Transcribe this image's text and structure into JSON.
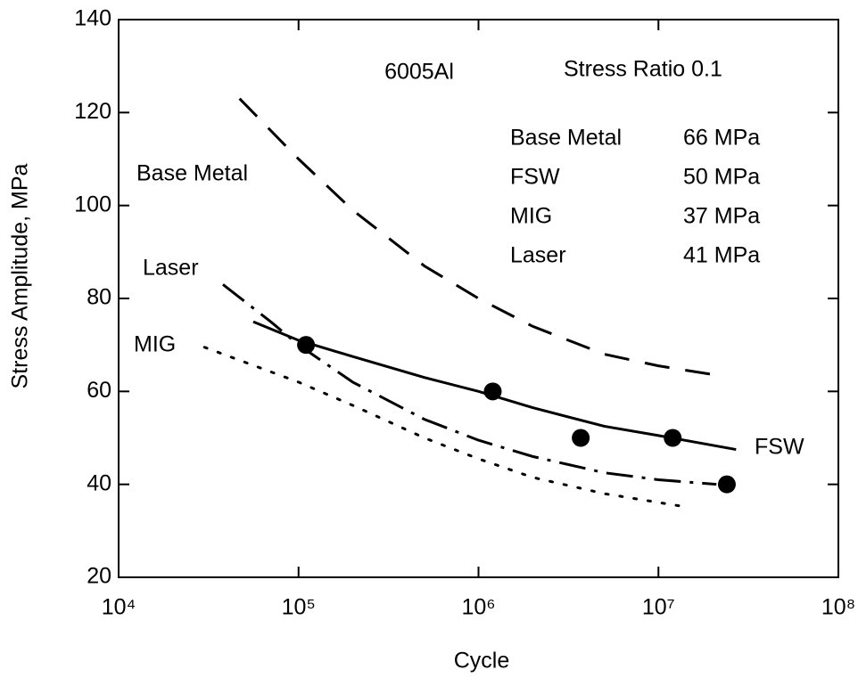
{
  "chart_data": {
    "type": "line",
    "x_axis_label": "Cycle",
    "y_axis_label": "Stress Amplitude, MPa",
    "xscale": "log",
    "xlim": [
      10000,
      100000000
    ],
    "ylim": [
      20,
      140
    ],
    "xticks": [
      {
        "value": 10000,
        "label": "10⁴"
      },
      {
        "value": 100000,
        "label": "10⁵"
      },
      {
        "value": 1000000,
        "label": "10⁶"
      },
      {
        "value": 10000000,
        "label": "10⁷"
      },
      {
        "value": 100000000,
        "label": "10⁸"
      }
    ],
    "yticks": [
      20,
      40,
      60,
      80,
      100,
      120,
      140
    ],
    "annotations": [
      "6005Al",
      "Stress Ratio 0.1"
    ],
    "fatigue_limits": [
      {
        "name": "Base Metal",
        "value": "66 MPa"
      },
      {
        "name": "FSW",
        "value": "50 MPa"
      },
      {
        "name": "MIG",
        "value": "37 MPa"
      },
      {
        "name": "Laser",
        "value": "41 MPa"
      }
    ],
    "series": [
      {
        "name": "Base Metal",
        "color": "#000000",
        "dash": "dashed",
        "x": [
          47000,
          100000,
          200000,
          500000,
          1000000,
          2000000,
          5000000,
          10000000,
          21000000
        ],
        "values": [
          123,
          110,
          99,
          87,
          80,
          74,
          68,
          65.5,
          63.5
        ]
      },
      {
        "name": "Laser",
        "color": "#000000",
        "dash": "dashdot",
        "x": [
          38000,
          70000,
          100000,
          200000,
          500000,
          1000000,
          2000000,
          5000000,
          10000000,
          21000000
        ],
        "values": [
          83,
          75,
          70,
          62,
          54,
          49.5,
          46,
          42.5,
          41,
          40
        ]
      },
      {
        "name": "MIG",
        "color": "#000000",
        "dash": "dotted",
        "x": [
          30000,
          100000,
          200000,
          500000,
          1000000,
          2000000,
          5000000,
          15000000
        ],
        "values": [
          69.5,
          62,
          57,
          50,
          45.5,
          41.5,
          38,
          35
        ]
      },
      {
        "name": "FSW",
        "color": "#000000",
        "dash": "solid",
        "x": [
          56000,
          100000,
          200000,
          500000,
          1000000,
          2000000,
          5000000,
          10000000,
          27000000
        ],
        "values": [
          75,
          71,
          67.5,
          63,
          60,
          56.5,
          52.5,
          50.5,
          47.5
        ],
        "points": {
          "x": [
            110000,
            1200000,
            3700000,
            12000000,
            24000000
          ],
          "values": [
            70,
            60,
            50,
            50,
            40
          ]
        }
      }
    ]
  }
}
